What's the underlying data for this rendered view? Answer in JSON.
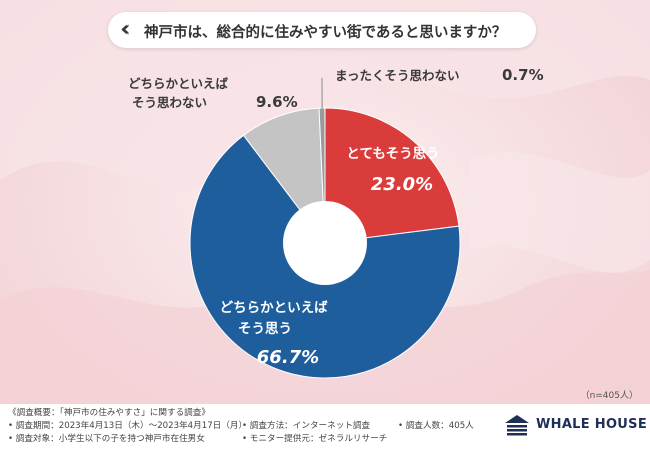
{
  "title": "神戸市は、総合的に住みやすい街であると思いますか？",
  "colors": {
    "red": "#d93c3a",
    "blue": "#1f5e9d",
    "gray": "#c4c4c4",
    "gray_dark": "#9a9a9a",
    "background": "#f6dfe1"
  },
  "chart_data": {
    "type": "pie",
    "donut": true,
    "slices": [
      {
        "label": "とてもそう思う",
        "value": 23.0,
        "display": "23.0%",
        "color": "#d93c3a"
      },
      {
        "label": "どちらかといえばそう思う",
        "value": 66.7,
        "display": "66.7%",
        "color": "#1f5e9d"
      },
      {
        "label": "どちらかといえばそう思わない",
        "value": 9.6,
        "display": "9.6%",
        "color": "#c4c4c4"
      },
      {
        "label": "まったくそう思わない",
        "value": 0.7,
        "display": "0.7%",
        "color": "#9a9a9a"
      }
    ],
    "label_lines": {
      "s0": [
        "とてもそう思う"
      ],
      "s1": [
        "どちらかといえば",
        "そう思う"
      ],
      "s2": [
        "どちらかといえば",
        "そう思わない"
      ],
      "s3": [
        "まったくそう思わない"
      ]
    },
    "n_label": "（n=405人）"
  },
  "footer": {
    "summary": "《調査概要：「神戸市の住みやすさ」に関する調査》",
    "period": "• 調査期間：2023年4月13日（木）～2023年4月17日（月）",
    "target": "• 調査対象：小学生以下の子を持つ神戸市在住男女",
    "method": "• 調査方法：インターネット調査",
    "provider": "• モニター提供元：ゼネラルリサーチ",
    "count": "• 調査人数：405人"
  },
  "logo": {
    "text": "WHALE HOUSE",
    "icon": "whale-house-logo-icon"
  }
}
